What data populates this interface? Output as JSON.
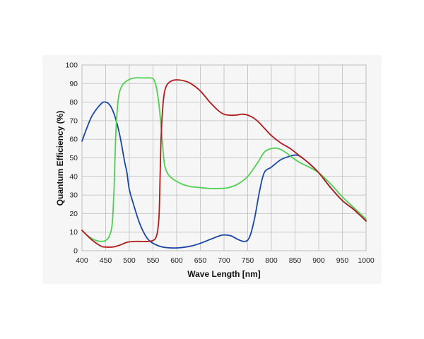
{
  "chart_data": {
    "type": "line",
    "xlabel": "Wave Length [nm]",
    "ylabel": "Quantum Efficiency (%)",
    "xlim": [
      400,
      1000
    ],
    "ylim": [
      0,
      100
    ],
    "xticks": [
      "400",
      "450",
      "500",
      "550",
      "600",
      "650",
      "700",
      "750",
      "800",
      "850",
      "900",
      "950",
      "1000"
    ],
    "yticks": [
      "0",
      "10",
      "20",
      "30",
      "40",
      "50",
      "60",
      "70",
      "80",
      "90",
      "100"
    ],
    "grid": true,
    "series": [
      {
        "color": "#1946a8",
        "points": [
          [
            400,
            59
          ],
          [
            420,
            72
          ],
          [
            440,
            79
          ],
          [
            450,
            80
          ],
          [
            460,
            78
          ],
          [
            470,
            72
          ],
          [
            480,
            62
          ],
          [
            490,
            48
          ],
          [
            495,
            42
          ],
          [
            500,
            33
          ],
          [
            510,
            24
          ],
          [
            520,
            16
          ],
          [
            530,
            10
          ],
          [
            540,
            6
          ],
          [
            550,
            4
          ],
          [
            570,
            2
          ],
          [
            600,
            1.5
          ],
          [
            630,
            2.5
          ],
          [
            650,
            4
          ],
          [
            670,
            6
          ],
          [
            690,
            8
          ],
          [
            700,
            8.5
          ],
          [
            715,
            8
          ],
          [
            730,
            6
          ],
          [
            745,
            5
          ],
          [
            755,
            8
          ],
          [
            765,
            18
          ],
          [
            775,
            32
          ],
          [
            785,
            42
          ],
          [
            800,
            45
          ],
          [
            820,
            49
          ],
          [
            840,
            51
          ],
          [
            850,
            51.5
          ],
          [
            860,
            51
          ],
          [
            875,
            48
          ],
          [
            900,
            42
          ],
          [
            925,
            34
          ],
          [
            950,
            27
          ],
          [
            975,
            22
          ],
          [
            1000,
            16
          ]
        ]
      },
      {
        "color": "#4fd052",
        "points": [
          [
            400,
            11
          ],
          [
            410,
            8.5
          ],
          [
            425,
            6
          ],
          [
            440,
            5
          ],
          [
            450,
            5.5
          ],
          [
            458,
            8
          ],
          [
            464,
            15
          ],
          [
            468,
            35
          ],
          [
            471,
            60
          ],
          [
            474,
            74
          ],
          [
            478,
            84
          ],
          [
            485,
            89
          ],
          [
            495,
            91.5
          ],
          [
            510,
            93
          ],
          [
            530,
            93
          ],
          [
            545,
            93
          ],
          [
            552,
            92
          ],
          [
            557,
            88
          ],
          [
            562,
            80
          ],
          [
            566,
            70
          ],
          [
            570,
            58
          ],
          [
            574,
            47
          ],
          [
            580,
            42
          ],
          [
            590,
            39
          ],
          [
            610,
            36
          ],
          [
            630,
            34.5
          ],
          [
            650,
            34
          ],
          [
            670,
            33.5
          ],
          [
            690,
            33.5
          ],
          [
            710,
            34
          ],
          [
            730,
            36
          ],
          [
            750,
            40
          ],
          [
            770,
            47
          ],
          [
            785,
            53
          ],
          [
            800,
            55
          ],
          [
            815,
            55
          ],
          [
            830,
            53
          ],
          [
            845,
            50
          ],
          [
            860,
            47.5
          ],
          [
            880,
            45
          ],
          [
            900,
            42
          ],
          [
            925,
            36
          ],
          [
            950,
            29
          ],
          [
            975,
            23
          ],
          [
            1000,
            17
          ]
        ]
      },
      {
        "color": "#b01c1c",
        "points": [
          [
            400,
            11
          ],
          [
            420,
            6
          ],
          [
            440,
            2.5
          ],
          [
            450,
            2
          ],
          [
            465,
            2
          ],
          [
            480,
            3
          ],
          [
            495,
            4.5
          ],
          [
            510,
            5
          ],
          [
            525,
            5
          ],
          [
            540,
            5
          ],
          [
            550,
            5.5
          ],
          [
            556,
            7
          ],
          [
            560,
            11
          ],
          [
            563,
            20
          ],
          [
            565,
            40
          ],
          [
            567,
            60
          ],
          [
            570,
            75
          ],
          [
            574,
            85
          ],
          [
            580,
            89.5
          ],
          [
            590,
            91.5
          ],
          [
            600,
            92
          ],
          [
            615,
            91.5
          ],
          [
            630,
            90
          ],
          [
            650,
            86
          ],
          [
            670,
            80
          ],
          [
            690,
            75
          ],
          [
            700,
            73.5
          ],
          [
            710,
            73
          ],
          [
            725,
            73
          ],
          [
            740,
            73.5
          ],
          [
            755,
            72.5
          ],
          [
            770,
            70
          ],
          [
            785,
            66
          ],
          [
            800,
            62
          ],
          [
            820,
            58
          ],
          [
            840,
            55
          ],
          [
            860,
            51
          ],
          [
            880,
            47
          ],
          [
            900,
            42
          ],
          [
            925,
            34
          ],
          [
            950,
            27
          ],
          [
            975,
            22
          ],
          [
            1000,
            16
          ]
        ]
      }
    ]
  }
}
